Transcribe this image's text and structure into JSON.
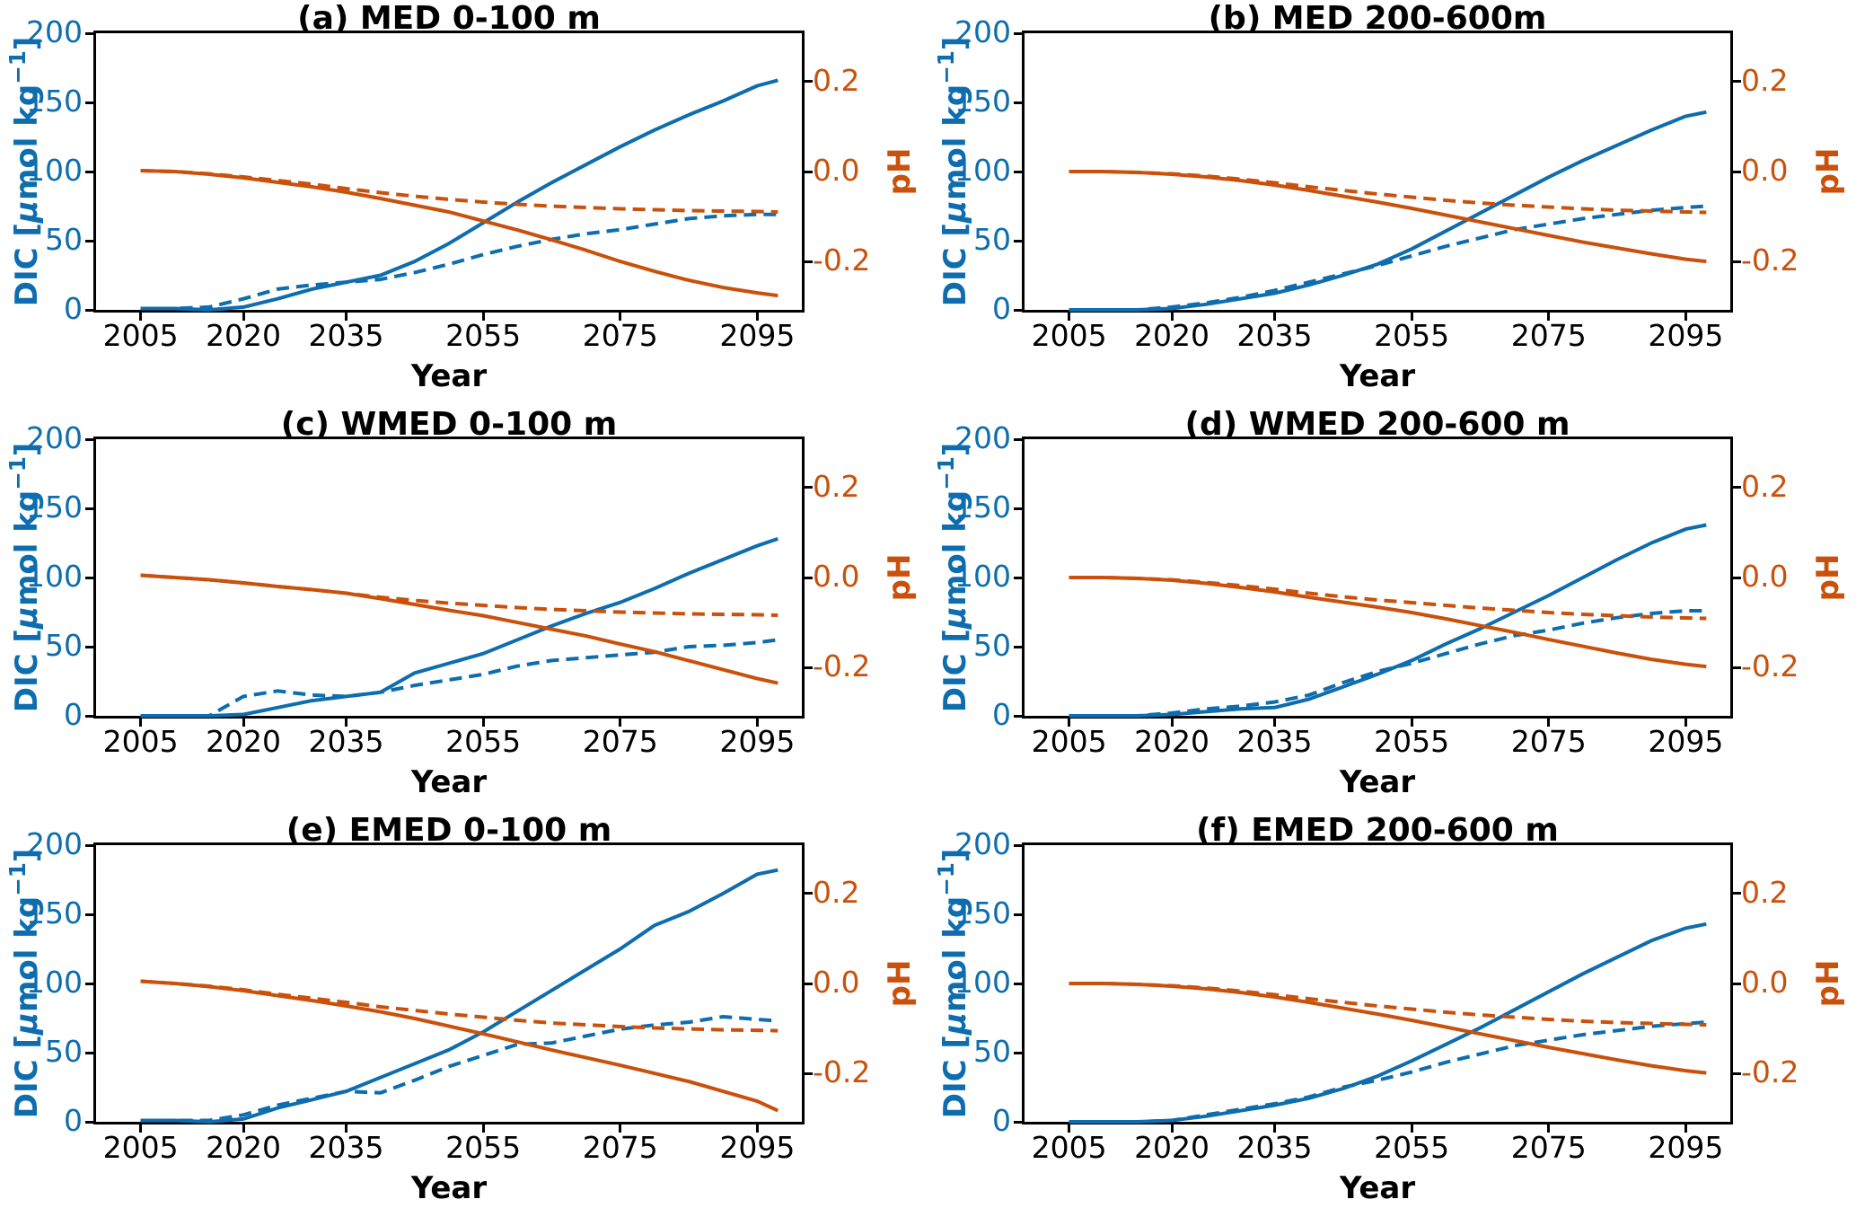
{
  "figure": {
    "colors": {
      "dic_blue": "#0d6dae",
      "ph_orange": "#c9510b",
      "axis_black": "#000000",
      "background": "#ffffff"
    },
    "x_axis_label": "Year",
    "right_axis_label": "pH",
    "left_axis_label_parts": [
      {
        "text": "DIC [",
        "style": "normal"
      },
      {
        "text": "μ",
        "style": "italic"
      },
      {
        "text": "mol kg",
        "style": "normal"
      },
      {
        "text": "−1",
        "style": "super"
      },
      {
        "text": "]",
        "style": "normal"
      }
    ],
    "x_ticks": [
      2005,
      2020,
      2035,
      2055,
      2075,
      2095
    ],
    "x_axis_range": [
      1998.5,
      2101.5
    ],
    "y_left_ticks": [
      200,
      150,
      100,
      50,
      0
    ],
    "y_left_range": [
      0,
      200
    ],
    "y_right_ticks": [
      {
        "label": "0.2",
        "value": 0.2
      },
      {
        "label": "0.0",
        "value": 0.0
      },
      {
        "label": "-0.2",
        "value": -0.2
      }
    ],
    "ph_axis": {
      "dic_equiv_at_ph0": 100,
      "dic_per_ph": 325
    }
  },
  "chart_data": [
    {
      "type": "line",
      "title": "(a) MED 0-100 m",
      "xlabel": "Year",
      "ylabel_left": "DIC [μmol kg−1]",
      "ylabel_right": "pH",
      "ylim_left": [
        0,
        200
      ],
      "right_ticks": [
        0.2,
        0.0,
        -0.2
      ],
      "x": [
        2005,
        2010,
        2015,
        2020,
        2025,
        2030,
        2035,
        2040,
        2045,
        2050,
        2055,
        2060,
        2065,
        2070,
        2075,
        2080,
        2085,
        2090,
        2095,
        2098
      ],
      "series": [
        {
          "name": "DIC (solid)",
          "axis": "left",
          "style": "solid",
          "color": "#0d6dae",
          "values": [
            1,
            1,
            0,
            2,
            8,
            15,
            20,
            25,
            35,
            48,
            63,
            78,
            92,
            105,
            118,
            130,
            141,
            151,
            162,
            166
          ]
        },
        {
          "name": "DIC (dashed)",
          "axis": "left",
          "style": "dashed",
          "color": "#0d6dae",
          "values": [
            1,
            1,
            2,
            8,
            15,
            18,
            20,
            22,
            27,
            33,
            40,
            46,
            51,
            55,
            58,
            62,
            66,
            68,
            69,
            69
          ]
        },
        {
          "name": "pH (solid)",
          "axis": "right",
          "style": "solid",
          "color": "#c9510b",
          "values": [
            0.002,
            0.0,
            -0.006,
            -0.014,
            -0.024,
            -0.034,
            -0.046,
            -0.06,
            -0.075,
            -0.09,
            -0.11,
            -0.13,
            -0.152,
            -0.175,
            -0.2,
            -0.222,
            -0.242,
            -0.258,
            -0.27,
            -0.276
          ]
        },
        {
          "name": "pH (dashed)",
          "axis": "right",
          "style": "dashed",
          "color": "#c9510b",
          "values": [
            0.002,
            0.0,
            -0.005,
            -0.012,
            -0.02,
            -0.028,
            -0.038,
            -0.047,
            -0.055,
            -0.062,
            -0.068,
            -0.073,
            -0.077,
            -0.08,
            -0.083,
            -0.085,
            -0.087,
            -0.088,
            -0.089,
            -0.09
          ]
        }
      ]
    },
    {
      "type": "line",
      "title": "(b) MED 200-600m",
      "xlabel": "Year",
      "ylabel_left": "DIC [μmol kg−1]",
      "ylabel_right": "pH",
      "ylim_left": [
        0,
        200
      ],
      "right_ticks": [
        0.2,
        0.0,
        -0.2
      ],
      "x": [
        2005,
        2010,
        2015,
        2020,
        2025,
        2030,
        2035,
        2040,
        2045,
        2050,
        2055,
        2060,
        2065,
        2070,
        2075,
        2080,
        2085,
        2090,
        2095,
        2098
      ],
      "series": [
        {
          "name": "DIC (solid)",
          "axis": "left",
          "style": "solid",
          "color": "#0d6dae",
          "values": [
            0,
            0,
            0,
            1,
            4,
            8,
            12,
            18,
            25,
            33,
            44,
            57,
            70,
            83,
            96,
            108,
            119,
            130,
            140,
            143
          ]
        },
        {
          "name": "DIC (dashed)",
          "axis": "left",
          "style": "dashed",
          "color": "#0d6dae",
          "values": [
            0,
            0,
            0,
            2,
            5,
            9,
            14,
            20,
            26,
            32,
            39,
            46,
            52,
            58,
            62,
            66,
            69,
            72,
            74,
            75
          ]
        },
        {
          "name": "pH (solid)",
          "axis": "right",
          "style": "solid",
          "color": "#c9510b",
          "values": [
            0.0,
            0.0,
            -0.002,
            -0.006,
            -0.012,
            -0.02,
            -0.03,
            -0.042,
            -0.055,
            -0.068,
            -0.082,
            -0.097,
            -0.112,
            -0.127,
            -0.142,
            -0.157,
            -0.17,
            -0.183,
            -0.195,
            -0.2
          ]
        },
        {
          "name": "pH (dashed)",
          "axis": "right",
          "style": "dashed",
          "color": "#c9510b",
          "values": [
            0.0,
            0.0,
            -0.002,
            -0.005,
            -0.01,
            -0.017,
            -0.025,
            -0.034,
            -0.042,
            -0.05,
            -0.057,
            -0.064,
            -0.07,
            -0.075,
            -0.079,
            -0.083,
            -0.086,
            -0.088,
            -0.09,
            -0.091
          ]
        }
      ]
    },
    {
      "type": "line",
      "title": "(c) WMED 0-100 m",
      "xlabel": "Year",
      "ylabel_left": "DIC [μmol kg−1]",
      "ylabel_right": "pH",
      "ylim_left": [
        0,
        200
      ],
      "right_ticks": [
        0.2,
        0.0,
        -0.2
      ],
      "x": [
        2005,
        2010,
        2015,
        2020,
        2025,
        2030,
        2035,
        2040,
        2045,
        2050,
        2055,
        2060,
        2065,
        2070,
        2075,
        2080,
        2085,
        2090,
        2095,
        2098
      ],
      "series": [
        {
          "name": "DIC (solid)",
          "axis": "left",
          "style": "solid",
          "color": "#0d6dae",
          "values": [
            0,
            0,
            0,
            1,
            6,
            11,
            14,
            17,
            31,
            38,
            45,
            55,
            65,
            74,
            82,
            92,
            103,
            113,
            123,
            128
          ]
        },
        {
          "name": "DIC (dashed)",
          "axis": "left",
          "style": "dashed",
          "color": "#0d6dae",
          "values": [
            0,
            0,
            0,
            14,
            18,
            15,
            14,
            17,
            22,
            26,
            30,
            36,
            40,
            42,
            44,
            46,
            50,
            51,
            53,
            55
          ]
        },
        {
          "name": "pH (solid)",
          "axis": "right",
          "style": "solid",
          "color": "#c9510b",
          "values": [
            0.005,
            0.0,
            -0.005,
            -0.012,
            -0.02,
            -0.027,
            -0.035,
            -0.047,
            -0.06,
            -0.073,
            -0.085,
            -0.1,
            -0.115,
            -0.13,
            -0.148,
            -0.165,
            -0.185,
            -0.205,
            -0.225,
            -0.235
          ]
        },
        {
          "name": "pH (dashed)",
          "axis": "right",
          "style": "dashed",
          "color": "#c9510b",
          "values": [
            0.005,
            0.0,
            -0.005,
            -0.012,
            -0.02,
            -0.027,
            -0.035,
            -0.044,
            -0.051,
            -0.057,
            -0.062,
            -0.067,
            -0.071,
            -0.074,
            -0.077,
            -0.079,
            -0.081,
            -0.082,
            -0.083,
            -0.084
          ]
        }
      ]
    },
    {
      "type": "line",
      "title": "(d) WMED 200-600 m",
      "xlabel": "Year",
      "ylabel_left": "DIC [μmol kg−1]",
      "ylabel_right": "pH",
      "ylim_left": [
        0,
        200
      ],
      "right_ticks": [
        0.2,
        0.0,
        -0.2
      ],
      "x": [
        2005,
        2010,
        2015,
        2020,
        2025,
        2030,
        2035,
        2040,
        2045,
        2050,
        2055,
        2060,
        2065,
        2070,
        2075,
        2080,
        2085,
        2090,
        2095,
        2098
      ],
      "series": [
        {
          "name": "DIC (solid)",
          "axis": "left",
          "style": "solid",
          "color": "#0d6dae",
          "values": [
            0,
            0,
            0,
            1,
            3,
            5,
            6,
            12,
            21,
            30,
            40,
            52,
            63,
            75,
            87,
            100,
            113,
            125,
            135,
            138
          ]
        },
        {
          "name": "DIC (dashed)",
          "axis": "left",
          "style": "dashed",
          "color": "#0d6dae",
          "values": [
            0,
            0,
            0,
            2,
            5,
            7,
            10,
            15,
            24,
            32,
            38,
            45,
            52,
            58,
            62,
            67,
            71,
            74,
            76,
            76
          ]
        },
        {
          "name": "pH (solid)",
          "axis": "right",
          "style": "solid",
          "color": "#c9510b",
          "values": [
            0.0,
            0.0,
            -0.002,
            -0.006,
            -0.013,
            -0.022,
            -0.032,
            -0.044,
            -0.055,
            -0.066,
            -0.078,
            -0.092,
            -0.107,
            -0.122,
            -0.138,
            -0.153,
            -0.168,
            -0.182,
            -0.193,
            -0.198
          ]
        },
        {
          "name": "pH (dashed)",
          "axis": "right",
          "style": "dashed",
          "color": "#c9510b",
          "values": [
            0.0,
            0.0,
            -0.002,
            -0.005,
            -0.011,
            -0.018,
            -0.026,
            -0.035,
            -0.043,
            -0.05,
            -0.056,
            -0.062,
            -0.068,
            -0.073,
            -0.078,
            -0.082,
            -0.085,
            -0.088,
            -0.09,
            -0.091
          ]
        }
      ]
    },
    {
      "type": "line",
      "title": "(e) EMED 0-100 m",
      "xlabel": "Year",
      "ylabel_left": "DIC [μmol kg−1]",
      "ylabel_right": "pH",
      "ylim_left": [
        0,
        200
      ],
      "right_ticks": [
        0.2,
        0.0,
        -0.2
      ],
      "x": [
        2005,
        2010,
        2015,
        2020,
        2025,
        2030,
        2035,
        2040,
        2045,
        2050,
        2055,
        2060,
        2065,
        2070,
        2075,
        2080,
        2085,
        2090,
        2095,
        2098
      ],
      "series": [
        {
          "name": "DIC (solid)",
          "axis": "left",
          "style": "solid",
          "color": "#0d6dae",
          "values": [
            1,
            1,
            0,
            2,
            10,
            16,
            22,
            32,
            42,
            52,
            65,
            80,
            95,
            110,
            125,
            142,
            152,
            165,
            179,
            182
          ]
        },
        {
          "name": "DIC (dashed)",
          "axis": "left",
          "style": "dashed",
          "color": "#0d6dae",
          "values": [
            1,
            1,
            1,
            5,
            12,
            17,
            22,
            21,
            30,
            40,
            48,
            56,
            57,
            62,
            67,
            70,
            72,
            76,
            74,
            73
          ]
        },
        {
          "name": "pH (solid)",
          "axis": "right",
          "style": "solid",
          "color": "#c9510b",
          "values": [
            0.005,
            0.0,
            -0.007,
            -0.016,
            -0.027,
            -0.038,
            -0.05,
            -0.063,
            -0.078,
            -0.095,
            -0.112,
            -0.13,
            -0.148,
            -0.165,
            -0.182,
            -0.2,
            -0.218,
            -0.24,
            -0.262,
            -0.283
          ]
        },
        {
          "name": "pH (dashed)",
          "axis": "right",
          "style": "dashed",
          "color": "#c9510b",
          "values": [
            0.005,
            0.0,
            -0.006,
            -0.014,
            -0.024,
            -0.033,
            -0.042,
            -0.052,
            -0.06,
            -0.068,
            -0.075,
            -0.082,
            -0.088,
            -0.092,
            -0.096,
            -0.099,
            -0.101,
            -0.103,
            -0.104,
            -0.105
          ]
        }
      ]
    },
    {
      "type": "line",
      "title": "(f) EMED 200-600 m",
      "xlabel": "Year",
      "ylabel_left": "DIC [μmol kg−1]",
      "ylabel_right": "pH",
      "ylim_left": [
        0,
        200
      ],
      "right_ticks": [
        0.2,
        0.0,
        -0.2
      ],
      "x": [
        2005,
        2010,
        2015,
        2020,
        2025,
        2030,
        2035,
        2040,
        2045,
        2050,
        2055,
        2060,
        2065,
        2070,
        2075,
        2080,
        2085,
        2090,
        2095,
        2098
      ],
      "series": [
        {
          "name": "DIC (solid)",
          "axis": "left",
          "style": "solid",
          "color": "#0d6dae",
          "values": [
            0,
            0,
            0,
            1,
            4,
            8,
            12,
            17,
            24,
            33,
            44,
            56,
            68,
            81,
            94,
            107,
            119,
            131,
            140,
            143
          ]
        },
        {
          "name": "DIC (dashed)",
          "axis": "left",
          "style": "dashed",
          "color": "#0d6dae",
          "values": [
            0,
            0,
            0,
            1,
            5,
            9,
            13,
            18,
            25,
            30,
            36,
            43,
            49,
            55,
            59,
            63,
            66,
            69,
            71,
            72
          ]
        },
        {
          "name": "pH (solid)",
          "axis": "right",
          "style": "solid",
          "color": "#c9510b",
          "values": [
            0.0,
            0.0,
            -0.002,
            -0.006,
            -0.012,
            -0.02,
            -0.03,
            -0.042,
            -0.055,
            -0.068,
            -0.082,
            -0.097,
            -0.112,
            -0.127,
            -0.142,
            -0.156,
            -0.17,
            -0.183,
            -0.194,
            -0.199
          ]
        },
        {
          "name": "pH (dashed)",
          "axis": "right",
          "style": "dashed",
          "color": "#c9510b",
          "values": [
            0.0,
            0.0,
            -0.002,
            -0.005,
            -0.01,
            -0.017,
            -0.025,
            -0.034,
            -0.042,
            -0.05,
            -0.057,
            -0.064,
            -0.07,
            -0.075,
            -0.08,
            -0.084,
            -0.087,
            -0.089,
            -0.091,
            -0.092
          ]
        }
      ]
    }
  ]
}
